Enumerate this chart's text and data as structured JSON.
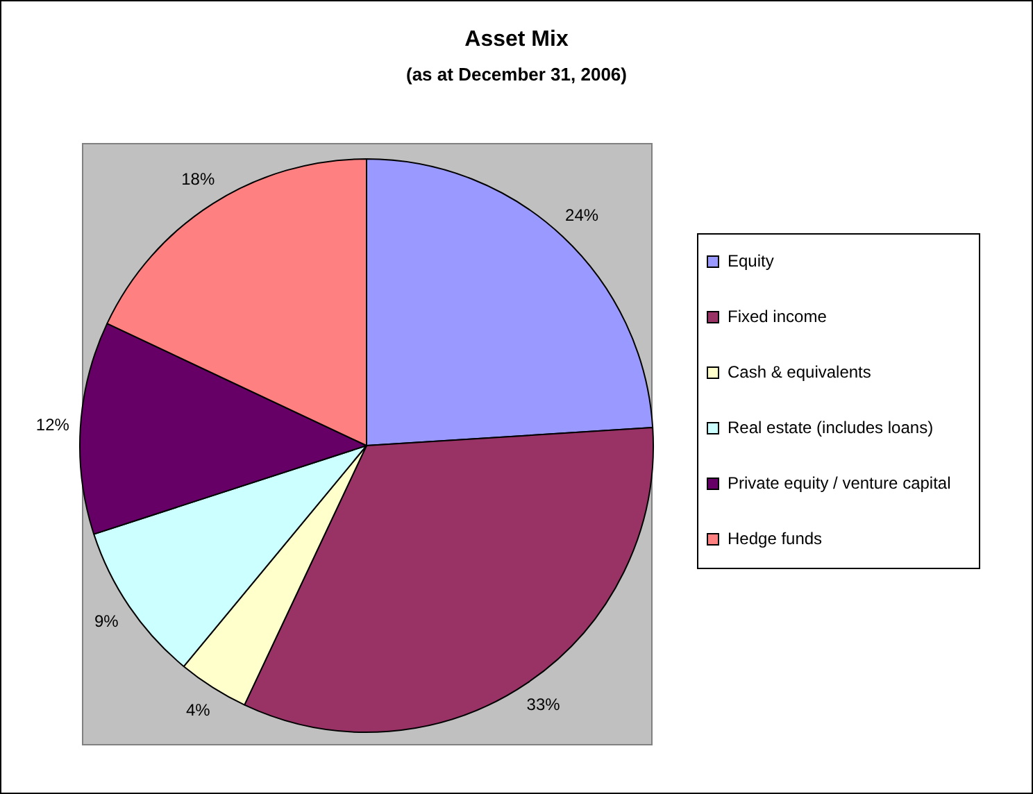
{
  "chart_data": {
    "type": "pie",
    "title": "Asset Mix",
    "subtitle": "(as at December 31, 2006)",
    "categories": [
      "Equity",
      "Fixed income",
      "Cash & equivalents",
      "Real estate (includes loans)",
      "Private equity / venture capital",
      "Hedge funds"
    ],
    "values": [
      24,
      33,
      4,
      9,
      12,
      18
    ],
    "value_labels": [
      "24%",
      "33%",
      "4%",
      "9%",
      "12%",
      "18%"
    ],
    "colors": [
      "#9999ff",
      "#993366",
      "#ffffcc",
      "#ccffff",
      "#660066",
      "#ff8080"
    ],
    "legend": "right"
  }
}
